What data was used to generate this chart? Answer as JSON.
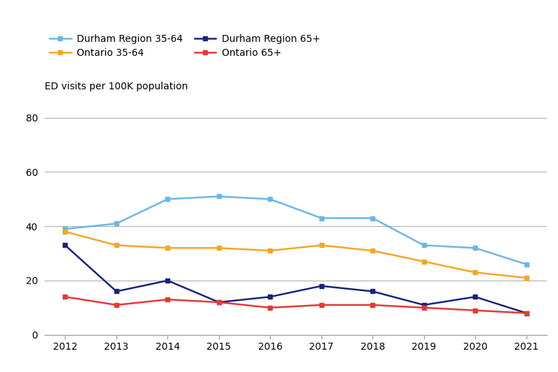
{
  "years": [
    2012,
    2013,
    2014,
    2015,
    2016,
    2017,
    2018,
    2019,
    2020,
    2021
  ],
  "durham_35_64": [
    39,
    41,
    50,
    51,
    50,
    43,
    43,
    33,
    32,
    26
  ],
  "ontario_35_64": [
    38,
    33,
    32,
    32,
    31,
    33,
    31,
    27,
    23,
    21
  ],
  "durham_65plus": [
    33,
    16,
    20,
    12,
    14,
    18,
    16,
    11,
    14,
    8
  ],
  "ontario_65plus": [
    14,
    11,
    13,
    12,
    10,
    11,
    11,
    10,
    9,
    8
  ],
  "colors": {
    "durham_35_64": "#6eb6e8",
    "ontario_35_64": "#f5a623",
    "durham_65plus": "#1a237e",
    "ontario_65plus": "#e53935"
  },
  "legend_labels": {
    "durham_35_64": "Durham Region 35-64",
    "ontario_35_64": "Ontario 35-64",
    "durham_65plus": "Durham Region 65+",
    "ontario_65plus": "Ontario 65+"
  },
  "ylabel": "ED visits per 100K population",
  "ylim": [
    0,
    85
  ],
  "yticks": [
    0,
    20,
    40,
    60,
    80
  ],
  "bg_color": "#ffffff"
}
